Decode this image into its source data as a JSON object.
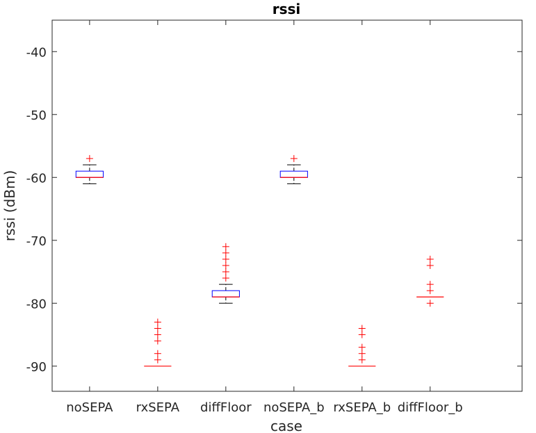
{
  "chart_data": {
    "type": "box",
    "title": "rssi",
    "xlabel": "case",
    "ylabel": "rssi (dBm)",
    "ylim": [
      -94,
      -35
    ],
    "yticks": [
      -40,
      -50,
      -60,
      -70,
      -80,
      -90
    ],
    "ytick_labels": [
      "-40",
      "-50",
      "-60",
      "-70",
      "-80",
      "-90"
    ],
    "grid": false,
    "categories": [
      "noSEPA",
      "rxSEPA",
      "diffFloor",
      "noSEPA_b",
      "rxSEPA_b",
      "diffFloor_b"
    ],
    "boxes": [
      {
        "q1": -60,
        "median": -60,
        "q3": -59,
        "whisker_low": -61,
        "whisker_high": -58,
        "outliers": [
          -57
        ]
      },
      {
        "q1": -90,
        "median": -90,
        "q3": -90,
        "whisker_low": -90,
        "whisker_high": -90,
        "outliers": [
          -83,
          -84,
          -85,
          -86,
          -88,
          -89
        ]
      },
      {
        "q1": -79,
        "median": -79,
        "q3": -78,
        "whisker_low": -80,
        "whisker_high": -77,
        "outliers": [
          -71,
          -72,
          -73,
          -74,
          -75,
          -76
        ]
      },
      {
        "q1": -60,
        "median": -60,
        "q3": -59,
        "whisker_low": -61,
        "whisker_high": -58,
        "outliers": [
          -57
        ]
      },
      {
        "q1": -90,
        "median": -90,
        "q3": -90,
        "whisker_low": -90,
        "whisker_high": -90,
        "outliers": [
          -84,
          -85,
          -87,
          -88,
          -89
        ]
      },
      {
        "q1": -79,
        "median": -79,
        "q3": -79,
        "whisker_low": -79,
        "whisker_high": -79,
        "outliers": [
          -73,
          -74,
          -77,
          -78,
          -80
        ]
      }
    ],
    "colors": {
      "box": "#0000ff",
      "median": "#ff0000",
      "whisker": "#000000",
      "outlier": "#ff0000",
      "axis": "#262626"
    }
  }
}
